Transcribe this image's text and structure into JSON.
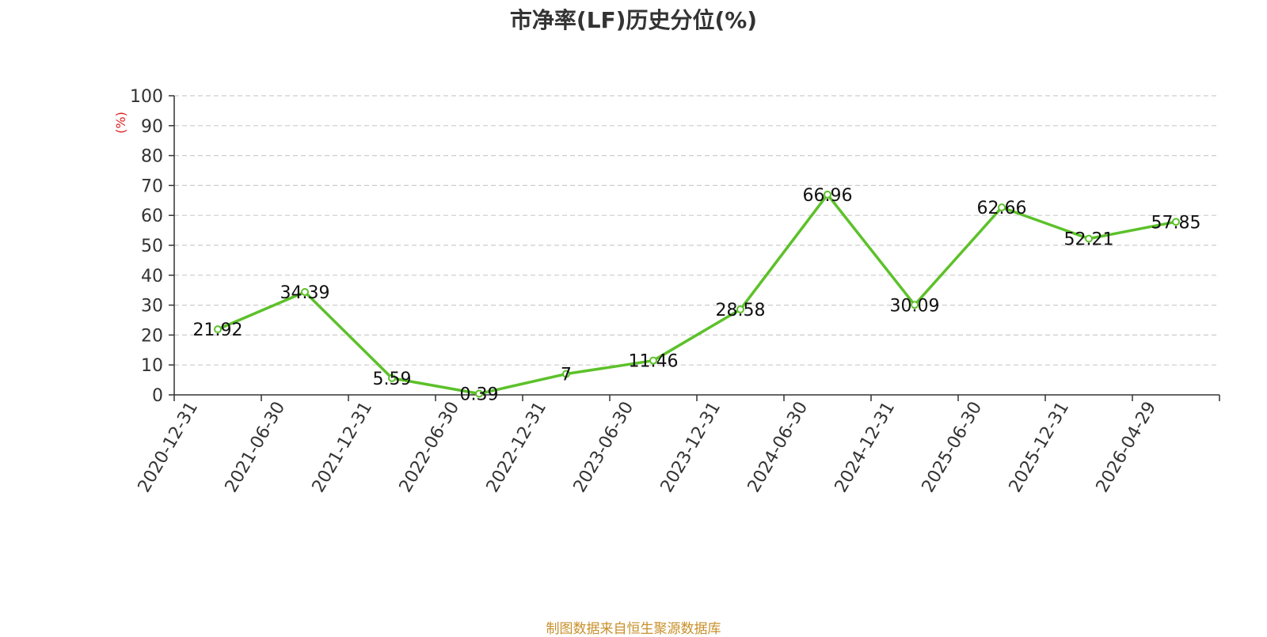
{
  "chart_data": {
    "type": "line",
    "title": "市净率(LF)历史分位(%)",
    "ylabel": "(%)",
    "xlabel": "",
    "ylim": [
      0,
      100
    ],
    "yticks": [
      0,
      10,
      20,
      30,
      40,
      50,
      60,
      70,
      80,
      90,
      100
    ],
    "grid": true,
    "categories": [
      "2020-12-31",
      "2021-06-30",
      "2021-12-31",
      "2022-06-30",
      "2022-12-31",
      "2023-06-30",
      "2023-12-31",
      "2024-06-30",
      "2024-12-31",
      "2025-06-30",
      "2025-12-31",
      "2026-04-29"
    ],
    "series": [
      {
        "values": [
          21.92,
          34.39,
          5.59,
          0.39,
          7,
          11.46,
          28.58,
          66.96,
          30.09,
          62.66,
          52.21,
          57.85
        ],
        "labels": [
          "21.92",
          "34.39",
          "5.59",
          "0.39",
          "7",
          "11.46",
          "28.58",
          "66.96",
          "30.09",
          "62.66",
          "52.21",
          "57.85"
        ],
        "color": "#5cc12a"
      }
    ]
  },
  "source_note": "制图数据来自恒生聚源数据库",
  "colors": {
    "line": "#5cc12a",
    "ylabel": "#e02020",
    "source": "#c8902a",
    "grid": "#cccccc",
    "axis": "#333333"
  }
}
